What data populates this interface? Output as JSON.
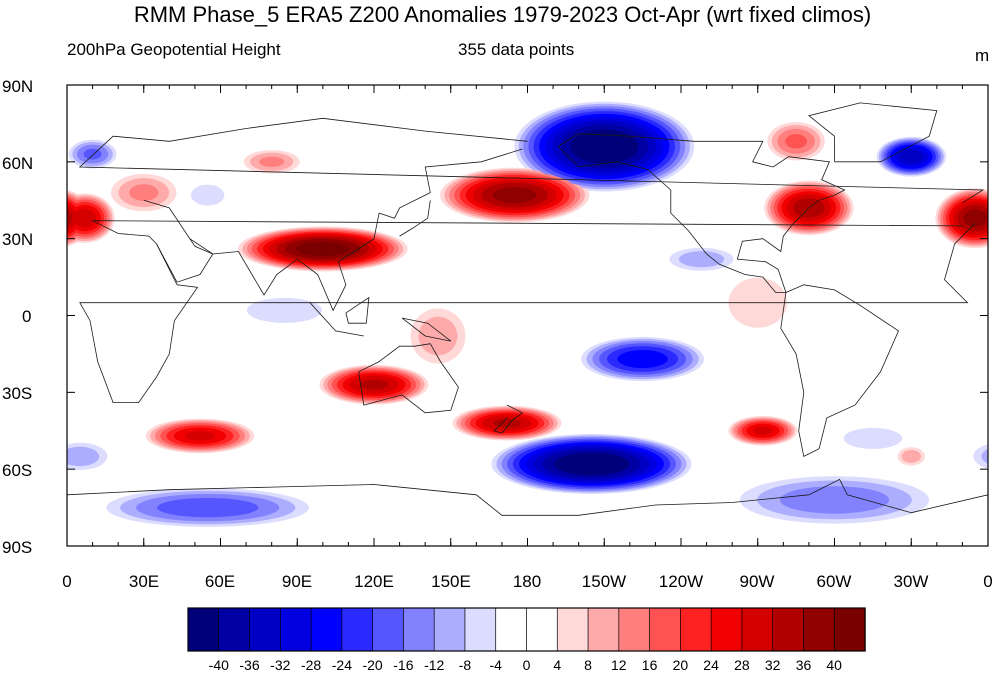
{
  "title": "RMM Phase_5 ERA5 Z200 Anomalies 1979-2023 Oct-Apr (wrt fixed climos)",
  "left_subtitle": "200hPa Geopotential Height",
  "center_subtitle": "355 data points",
  "units": "m",
  "y_ticks": [
    "90N",
    "60N",
    "30N",
    "0",
    "30S",
    "60S",
    "90S"
  ],
  "x_ticks": [
    "0",
    "30E",
    "60E",
    "90E",
    "120E",
    "150E",
    "180",
    "150W",
    "120W",
    "90W",
    "60W",
    "30W",
    "0"
  ],
  "colorbar": {
    "labels": [
      "-40",
      "-36",
      "-32",
      "-28",
      "-24",
      "-20",
      "-16",
      "-12",
      "-8",
      "-4",
      "0",
      "4",
      "8",
      "12",
      "16",
      "20",
      "24",
      "28",
      "32",
      "36",
      "40"
    ],
    "colors": [
      "#00007a",
      "#0000a3",
      "#0000c4",
      "#0000e0",
      "#0000ff",
      "#2a2aff",
      "#5656ff",
      "#8282ff",
      "#adadff",
      "#dcdcff",
      "#ffffff",
      "#ffffff",
      "#ffd8d8",
      "#ffaaaa",
      "#ff7f7f",
      "#ff5252",
      "#ff2222",
      "#f00000",
      "#d40000",
      "#b00000",
      "#900000",
      "#7a0000"
    ]
  },
  "anomaly_features": [
    {
      "name": "north-pacific-low",
      "lon": 210,
      "lat": 62,
      "value": -40
    },
    {
      "name": "southern-ocean-low",
      "lon": 205,
      "lat": -58,
      "value": -40
    },
    {
      "name": "north-atlantic-low",
      "lon": 330,
      "lat": 62,
      "value": -32
    },
    {
      "name": "asia-jet-high",
      "lon": 100,
      "lat": 27,
      "value": 40
    },
    {
      "name": "north-pacific-high",
      "lon": 175,
      "lat": 50,
      "value": 36
    },
    {
      "name": "north-america-high",
      "lon": 290,
      "lat": 43,
      "value": 32
    },
    {
      "name": "europe-high",
      "lon": 355,
      "lat": 35,
      "value": 36
    },
    {
      "name": "australia-high",
      "lon": 120,
      "lat": -28,
      "value": 32
    },
    {
      "name": "new-zealand-high",
      "lon": 170,
      "lat": -42,
      "value": 32
    },
    {
      "name": "indian-ocean-high",
      "lon": 50,
      "lat": -47,
      "value": 28
    },
    {
      "name": "south-america-high",
      "lon": 275,
      "lat": -45,
      "value": 28
    },
    {
      "name": "east-pacific-low",
      "lon": 225,
      "lat": -20,
      "value": -24
    }
  ]
}
